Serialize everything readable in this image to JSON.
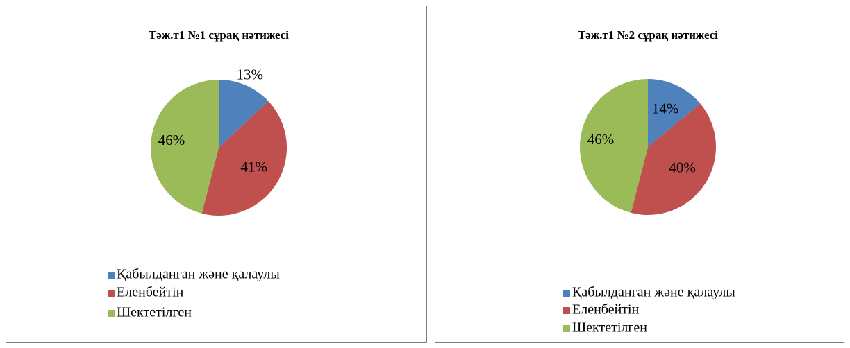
{
  "chart_data": [
    {
      "type": "pie",
      "title": "Тәж.т1 №1 сұрақ нәтижесі",
      "categories": [
        "Қабылданған және қалаулы",
        "Еленбейтін",
        "Шектетілген"
      ],
      "values": [
        13,
        41,
        46
      ],
      "value_labels": [
        "13%",
        "41%",
        "46%"
      ],
      "colors": [
        "#4f81bd",
        "#c0504d",
        "#9bbb59"
      ]
    },
    {
      "type": "pie",
      "title": "Тәж.т1 №2 сұрақ нәтижесі",
      "categories": [
        "Қабылданған және қалаулы",
        "Еленбейтін",
        "Шектетілген"
      ],
      "values": [
        14,
        40,
        46
      ],
      "value_labels": [
        "14%",
        "40%",
        "46%"
      ],
      "colors": [
        "#4f81bd",
        "#c0504d",
        "#9bbb59"
      ]
    }
  ]
}
